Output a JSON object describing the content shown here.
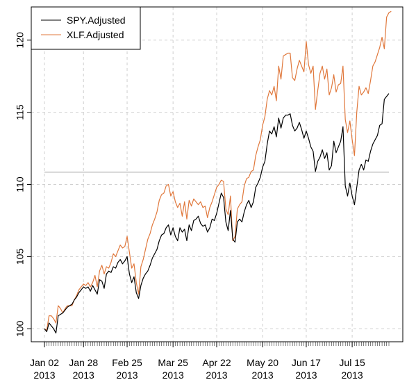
{
  "chart_data": {
    "type": "line",
    "title": "",
    "xlabel": "",
    "ylabel": "",
    "ylim": [
      99.1,
      122.3
    ],
    "y_ticks": [
      100,
      105,
      110,
      115,
      120
    ],
    "x_ticks": [
      {
        "label": "Jan 02",
        "year": "2013",
        "index": 0
      },
      {
        "label": "Jan 28",
        "year": "2013",
        "index": 17
      },
      {
        "label": "Feb 25",
        "year": "2013",
        "index": 36
      },
      {
        "label": "Mar 25",
        "year": "2013",
        "index": 56
      },
      {
        "label": "Apr 22",
        "year": "2013",
        "index": 75
      },
      {
        "label": "May 20",
        "year": "2013",
        "index": 95
      },
      {
        "label": "Jun 17",
        "year": "2013",
        "index": 114
      },
      {
        "label": "Jul 15",
        "year": "2013",
        "index": 134
      }
    ],
    "reference_line": {
      "value": 110.85,
      "color": "#c8c8c8"
    },
    "grid": true,
    "legend_position": "top-left",
    "series": [
      {
        "name": "SPY.Adjusted",
        "color": "#000000",
        "values": [
          100,
          99.8,
          100.4,
          100.2,
          100.0,
          99.7,
          100.9,
          101.0,
          101.1,
          101.3,
          101.5,
          101.6,
          101.7,
          102.0,
          102.2,
          102.5,
          102.7,
          102.9,
          102.8,
          102.9,
          102.6,
          103.0,
          102.7,
          102.4,
          103.4,
          103.3,
          102.8,
          103.8,
          104.0,
          103.9,
          104.3,
          104.2,
          104.6,
          104.8,
          104.5,
          104.7,
          105.0,
          103.8,
          103.2,
          103.6,
          102.5,
          102.1,
          103.0,
          103.5,
          103.8,
          104.0,
          104.4,
          104.9,
          105.2,
          105.5,
          106.1,
          106.5,
          106.6,
          107.0,
          107.2,
          106.5,
          107.0,
          106.4,
          106.1,
          107.0,
          106.7,
          106.9,
          106.1,
          107.2,
          106.8,
          107.5,
          107.6,
          107.8,
          107.3,
          107.1,
          107.2,
          106.7,
          107.0,
          107.6,
          107.5,
          108.0,
          108.7,
          109.4,
          109.1,
          107.4,
          106.8,
          108.2,
          106.2,
          106.0,
          107.4,
          107.6,
          107.4,
          108.1,
          108.6,
          108.9,
          108.4,
          108.8,
          109.8,
          110.1,
          110.5,
          111.2,
          111.6,
          112.8,
          113.7,
          113.5,
          114.0,
          113.3,
          114.6,
          113.9,
          114.6,
          114.8,
          114.8,
          114.9,
          114.1,
          113.7,
          113.9,
          114.3,
          113.8,
          113.2,
          113.7,
          113.2,
          112.6,
          112.3,
          110.9,
          111.6,
          111.9,
          112.4,
          111.8,
          112.2,
          111.0,
          111.3,
          113.0,
          112.2,
          112.6,
          113.0,
          114.0,
          109.9,
          109.2,
          110.1,
          109.2,
          108.6,
          109.8,
          111.0,
          111.4,
          111.0,
          111.7,
          111.6,
          112.3,
          112.8,
          113.1,
          113.4,
          114.1,
          114.2,
          115.9,
          116.1,
          116.3
        ]
      },
      {
        "name": "XLF.Adjusted",
        "color": "#e0783c",
        "values": [
          100,
          99.9,
          100.9,
          100.9,
          100.7,
          100.4,
          101.6,
          101.4,
          101.1,
          101.4,
          101.6,
          101.6,
          101.6,
          102.0,
          102.3,
          102.7,
          102.9,
          103.1,
          103.0,
          103.2,
          102.9,
          103.2,
          103.7,
          102.9,
          104.0,
          104.4,
          103.8,
          104.3,
          104.2,
          104.6,
          105.2,
          105.0,
          105.4,
          105.8,
          105.6,
          105.7,
          106.4,
          105.3,
          104.2,
          104.5,
          103.2,
          102.4,
          104.3,
          104.8,
          105.5,
          106.2,
          106.6,
          107.2,
          107.6,
          108.1,
          108.9,
          109.3,
          109.4,
          109.9,
          110.0,
          109.2,
          109.5,
          108.8,
          108.4,
          108.7,
          107.8,
          108.8,
          107.6,
          108.9,
          108.5,
          109.0,
          108.8,
          108.6,
          108.8,
          108.4,
          108.5,
          107.7,
          108.4,
          108.8,
          109.3,
          109.8,
          110.0,
          110.3,
          110.2,
          108.3,
          107.9,
          109.2,
          106.1,
          106.4,
          108.3,
          108.6,
          108.8,
          109.9,
          110.4,
          110.5,
          110.9,
          111.0,
          112.0,
          112.6,
          113.1,
          114.1,
          114.7,
          115.9,
          116.5,
          116.2,
          116.8,
          115.8,
          118.2,
          117.3,
          118.9,
          119.0,
          119.1,
          119.1,
          117.4,
          117.2,
          118.0,
          118.6,
          118.2,
          117.8,
          119.9,
          118.3,
          117.7,
          118.2,
          115.2,
          116.5,
          117.7,
          118.2,
          117.3,
          118.0,
          116.2,
          116.7,
          117.6,
          116.4,
          116.9,
          117.0,
          118.2,
          114.5,
          113.6,
          114.4,
          113.1,
          112.0,
          115.0,
          116.8,
          116.2,
          116.4,
          116.7,
          116.3,
          117.2,
          118.2,
          118.5,
          119.0,
          119.5,
          120.2,
          119.4,
          121.6,
          121.9,
          122.0
        ]
      }
    ]
  }
}
